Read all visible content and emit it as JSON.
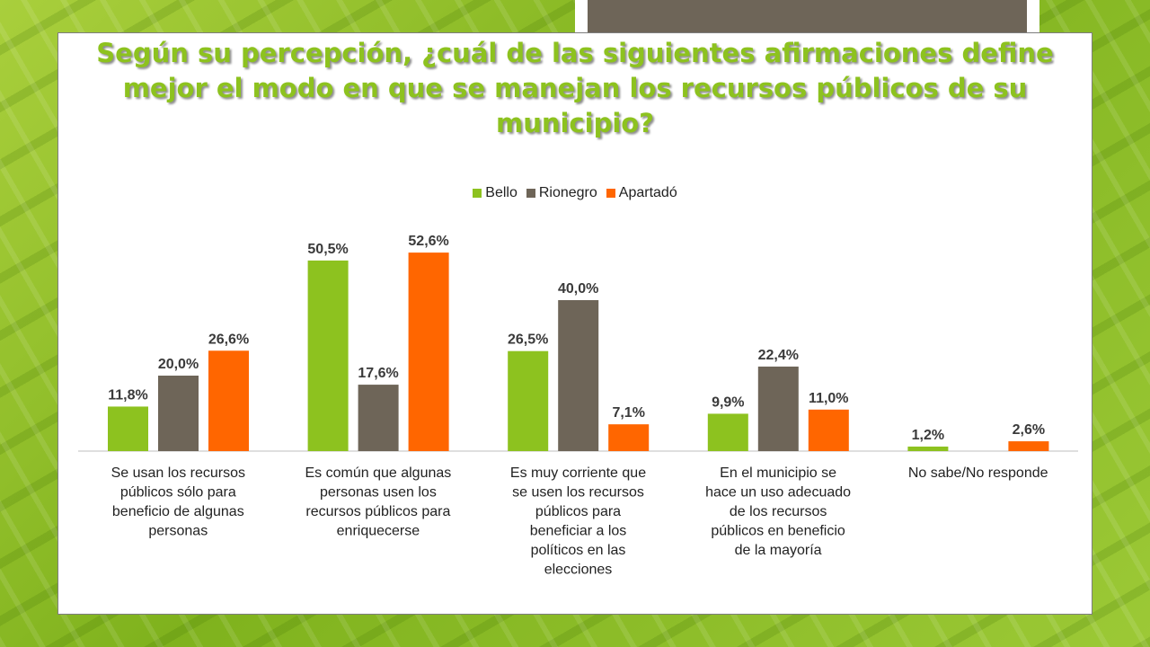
{
  "chart_data": {
    "type": "bar",
    "title": "Según su percepción, ¿cuál de las siguientes afirmaciones define mejor el modo en que se manejan los recursos públicos de su municipio?",
    "title_lines": [
      "Según su percepción, ¿cuál de las siguientes afirmaciones define",
      "mejor el modo en que se manejan los recursos públicos de su",
      "municipio?"
    ],
    "categories": [
      [
        "Se usan los recursos",
        "públicos sólo para",
        "beneficio de algunas",
        "personas"
      ],
      [
        "Es común que algunas",
        "personas usen los",
        "recursos públicos para",
        "enriquecerse"
      ],
      [
        "Es muy corriente que",
        "se usen los recursos",
        "públicos para",
        "beneficiar a los",
        "políticos en las",
        "elecciones"
      ],
      [
        "En el municipio se",
        "hace un uso adecuado",
        "de los recursos",
        "públicos en beneficio",
        "de la mayoría"
      ],
      [
        "No sabe/No responde"
      ]
    ],
    "series": [
      {
        "name": "Bello",
        "color": "#8dc21f",
        "values": [
          11.8,
          50.5,
          26.5,
          9.9,
          1.2
        ],
        "labels": [
          "11,8%",
          "50,5%",
          "26,5%",
          "9,9%",
          "1,2%"
        ]
      },
      {
        "name": "Rionegro",
        "color": "#6e6558",
        "values": [
          20.0,
          17.6,
          40.0,
          22.4,
          null
        ],
        "labels": [
          "20,0%",
          "17,6%",
          "40,0%",
          "22,4%",
          ""
        ]
      },
      {
        "name": "Apartadó",
        "color": "#ff6600",
        "values": [
          26.6,
          52.6,
          7.1,
          11.0,
          2.6
        ],
        "labels": [
          "26,6%",
          "52,6%",
          "7,1%",
          "11,0%",
          "2,6%"
        ]
      }
    ],
    "ylabel": "",
    "xlabel": "",
    "ylim": [
      0,
      55
    ],
    "grid": false,
    "legend_position": "top"
  }
}
